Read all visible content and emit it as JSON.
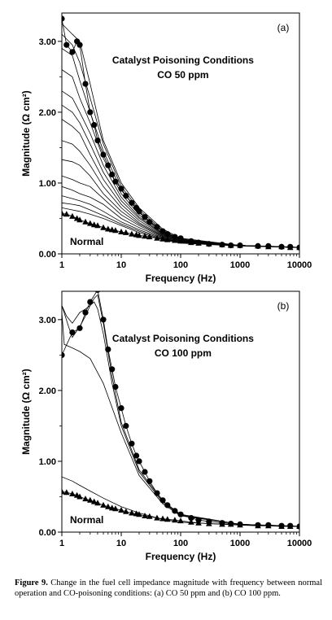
{
  "caption": {
    "label": "Figure 9.",
    "text": "Change in the fuel cell impedance magnitude with frequency between normal operation and CO-poisoning conditions: (a) CO 50 ppm and (b) CO 100 ppm."
  },
  "chart_data": [
    {
      "type": "line",
      "panel_label": "(a)",
      "annotation_lines": [
        "Catalyst Poisoning Conditions",
        "CO 50 ppm"
      ],
      "normal_label": "Normal",
      "xlabel": "Frequency (Hz)",
      "ylabel": "Magnitude (Ω cm²)",
      "x_scale": "log",
      "xlim": [
        1,
        10000
      ],
      "ylim": [
        0,
        3.4
      ],
      "x_ticks": [
        1,
        10,
        100,
        1000,
        10000
      ],
      "x_tick_labels": [
        "1",
        "10",
        "100",
        "1000",
        "10000"
      ],
      "y_ticks": [
        0,
        1,
        2,
        3
      ],
      "y_tick_labels": [
        "0.00",
        "1.00",
        "2.00",
        "3.00"
      ],
      "series": [
        {
          "marker": "circle",
          "x": [
            1,
            1.2,
            1.5,
            1.8,
            2,
            2.5,
            3,
            3.5,
            4,
            5,
            6,
            7,
            8,
            10,
            12,
            15,
            18,
            20,
            25,
            30,
            40,
            50,
            60,
            80,
            100,
            150,
            200,
            300,
            500,
            700,
            1000,
            2000,
            3000,
            5000,
            7000,
            10000
          ],
          "y": [
            3.32,
            2.95,
            2.85,
            3.0,
            2.95,
            2.4,
            2.0,
            1.82,
            1.6,
            1.4,
            1.25,
            1.12,
            1.02,
            0.92,
            0.82,
            0.72,
            0.65,
            0.6,
            0.52,
            0.45,
            0.38,
            0.32,
            0.28,
            0.24,
            0.22,
            0.18,
            0.16,
            0.14,
            0.13,
            0.12,
            0.12,
            0.11,
            0.11,
            0.1,
            0.1,
            0.09
          ]
        },
        {
          "marker": "none",
          "x": [
            1,
            1.5,
            2,
            3,
            5,
            10,
            20,
            50,
            100,
            1000,
            10000
          ],
          "y": [
            3.25,
            3.1,
            3.0,
            2.4,
            1.6,
            1.0,
            0.65,
            0.35,
            0.22,
            0.12,
            0.09
          ]
        },
        {
          "marker": "none",
          "x": [
            1,
            1.5,
            2,
            3,
            5,
            10,
            20,
            50,
            100,
            1000,
            10000
          ],
          "y": [
            3.1,
            2.95,
            2.7,
            2.2,
            1.55,
            0.95,
            0.62,
            0.33,
            0.21,
            0.12,
            0.09
          ]
        },
        {
          "marker": "none",
          "x": [
            1,
            1.5,
            2,
            3,
            5,
            10,
            20,
            50,
            100,
            1000,
            10000
          ],
          "y": [
            2.9,
            2.8,
            2.45,
            2.0,
            1.45,
            0.9,
            0.58,
            0.32,
            0.2,
            0.12,
            0.09
          ]
        },
        {
          "marker": "none",
          "x": [
            1,
            1.5,
            2,
            3,
            5,
            10,
            20,
            50,
            100,
            1000,
            10000
          ],
          "y": [
            2.6,
            2.5,
            2.2,
            1.85,
            1.35,
            0.85,
            0.55,
            0.3,
            0.2,
            0.12,
            0.09
          ]
        },
        {
          "marker": "none",
          "x": [
            1,
            1.5,
            2,
            3,
            5,
            10,
            20,
            50,
            100,
            1000,
            10000
          ],
          "y": [
            2.3,
            2.2,
            2.0,
            1.7,
            1.25,
            0.8,
            0.52,
            0.29,
            0.19,
            0.12,
            0.09
          ]
        },
        {
          "marker": "none",
          "x": [
            1,
            1.5,
            2,
            3,
            5,
            10,
            20,
            50,
            100,
            1000,
            10000
          ],
          "y": [
            2.1,
            2.0,
            1.85,
            1.55,
            1.15,
            0.75,
            0.5,
            0.28,
            0.19,
            0.12,
            0.09
          ]
        },
        {
          "marker": "none",
          "x": [
            1,
            1.5,
            2,
            3,
            5,
            10,
            20,
            50,
            100,
            1000,
            10000
          ],
          "y": [
            1.9,
            1.8,
            1.7,
            1.4,
            1.05,
            0.7,
            0.47,
            0.27,
            0.18,
            0.12,
            0.09
          ]
        },
        {
          "marker": "none",
          "x": [
            1,
            1.5,
            2,
            3,
            5,
            10,
            20,
            50,
            100,
            1000,
            10000
          ],
          "y": [
            1.6,
            1.55,
            1.45,
            1.25,
            0.95,
            0.65,
            0.44,
            0.26,
            0.18,
            0.12,
            0.09
          ]
        },
        {
          "marker": "none",
          "x": [
            1,
            1.5,
            2,
            3,
            5,
            10,
            20,
            50,
            100,
            1000,
            10000
          ],
          "y": [
            1.33,
            1.3,
            1.25,
            1.1,
            0.85,
            0.6,
            0.42,
            0.25,
            0.17,
            0.12,
            0.09
          ]
        },
        {
          "marker": "none",
          "x": [
            1,
            1.5,
            2,
            3,
            5,
            10,
            20,
            50,
            100,
            1000,
            10000
          ],
          "y": [
            1.1,
            1.05,
            1.0,
            0.95,
            0.78,
            0.55,
            0.4,
            0.24,
            0.17,
            0.12,
            0.09
          ]
        },
        {
          "marker": "none",
          "x": [
            1,
            1.5,
            2,
            3,
            5,
            10,
            20,
            50,
            100,
            1000,
            10000
          ],
          "y": [
            0.95,
            0.9,
            0.85,
            0.8,
            0.7,
            0.5,
            0.37,
            0.23,
            0.16,
            0.12,
            0.09
          ]
        },
        {
          "marker": "none",
          "x": [
            1,
            1.5,
            2,
            3,
            5,
            10,
            20,
            50,
            100,
            1000,
            10000
          ],
          "y": [
            0.82,
            0.78,
            0.75,
            0.7,
            0.6,
            0.45,
            0.34,
            0.22,
            0.16,
            0.12,
            0.09
          ]
        },
        {
          "marker": "none",
          "x": [
            1,
            1.5,
            2,
            3,
            5,
            10,
            20,
            50,
            100,
            1000,
            10000
          ],
          "y": [
            0.72,
            0.7,
            0.68,
            0.62,
            0.54,
            0.42,
            0.32,
            0.21,
            0.16,
            0.12,
            0.09
          ]
        },
        {
          "marker": "none",
          "x": [
            1,
            1.5,
            2,
            3,
            5,
            10,
            20,
            50,
            100,
            1000,
            10000
          ],
          "y": [
            0.65,
            0.62,
            0.6,
            0.56,
            0.5,
            0.4,
            0.3,
            0.2,
            0.15,
            0.11,
            0.09
          ]
        },
        {
          "marker": "triangle",
          "x": [
            1,
            1.2,
            1.5,
            1.8,
            2,
            2.5,
            3,
            3.5,
            4,
            5,
            6,
            7,
            8,
            10,
            12,
            15,
            18,
            20,
            25,
            30,
            40,
            50,
            60,
            80,
            100,
            150,
            200,
            300,
            500,
            700,
            1000,
            2000,
            3000,
            5000,
            7000,
            10000
          ],
          "y": [
            0.57,
            0.56,
            0.53,
            0.5,
            0.48,
            0.45,
            0.43,
            0.41,
            0.4,
            0.37,
            0.35,
            0.34,
            0.33,
            0.31,
            0.3,
            0.28,
            0.27,
            0.26,
            0.25,
            0.24,
            0.22,
            0.21,
            0.2,
            0.19,
            0.18,
            0.16,
            0.15,
            0.14,
            0.13,
            0.12,
            0.12,
            0.11,
            0.1,
            0.1,
            0.09,
            0.09
          ]
        }
      ]
    },
    {
      "type": "line",
      "panel_label": "(b)",
      "annotation_lines": [
        "Catalyst Poisoning Conditions",
        "CO 100 ppm"
      ],
      "normal_label": "Normal",
      "xlabel": "Frequency (Hz)",
      "ylabel": "Magnitude (Ω cm²)",
      "x_scale": "log",
      "xlim": [
        1,
        10000
      ],
      "ylim": [
        0,
        3.4
      ],
      "x_ticks": [
        1,
        10,
        100,
        1000,
        10000
      ],
      "x_tick_labels": [
        "1",
        "10",
        "100",
        "1000",
        "10000"
      ],
      "y_ticks": [
        0,
        1,
        2,
        3
      ],
      "y_tick_labels": [
        "0.00",
        "1.00",
        "2.00",
        "3.00"
      ],
      "series": [
        {
          "marker": "circle",
          "x": [
            1,
            1.5,
            2,
            2.5,
            3,
            4,
            5,
            6,
            7,
            8,
            10,
            12,
            15,
            18,
            20,
            25,
            30,
            40,
            50,
            60,
            80,
            100,
            150,
            200,
            300,
            500,
            700,
            1000,
            2000,
            3000,
            5000,
            7000,
            10000
          ],
          "y": [
            2.5,
            2.82,
            2.88,
            3.1,
            3.25,
            3.42,
            3.0,
            2.58,
            2.3,
            2.05,
            1.75,
            1.5,
            1.25,
            1.08,
            1.0,
            0.85,
            0.72,
            0.55,
            0.45,
            0.38,
            0.3,
            0.25,
            0.2,
            0.17,
            0.15,
            0.13,
            0.12,
            0.11,
            0.1,
            0.1,
            0.09,
            0.09,
            0.08
          ]
        },
        {
          "marker": "none",
          "x": [
            1,
            1.3,
            1.5,
            2,
            2.5,
            3,
            3.5,
            4,
            5,
            7,
            10,
            20,
            50,
            100,
            1000,
            10000
          ],
          "y": [
            3.2,
            2.9,
            2.75,
            2.9,
            3.05,
            3.2,
            3.25,
            3.15,
            2.8,
            2.1,
            1.5,
            0.85,
            0.42,
            0.24,
            0.11,
            0.08
          ]
        },
        {
          "marker": "none",
          "x": [
            1,
            1.2,
            1.5,
            2,
            2.5,
            3,
            3.5,
            4,
            5,
            7,
            10,
            20,
            50,
            100,
            1000,
            10000
          ],
          "y": [
            3.2,
            3.05,
            2.95,
            3.1,
            3.15,
            3.2,
            3.3,
            3.35,
            2.95,
            2.2,
            1.55,
            0.88,
            0.44,
            0.25,
            0.11,
            0.08
          ]
        },
        {
          "marker": "none",
          "x": [
            1,
            1.1,
            1.5,
            2,
            3,
            5,
            10,
            20,
            50,
            100,
            1000,
            10000
          ],
          "y": [
            3.1,
            2.65,
            2.6,
            2.55,
            2.45,
            2.1,
            1.4,
            0.8,
            0.4,
            0.23,
            0.11,
            0.08
          ]
        },
        {
          "marker": "none",
          "x": [
            1,
            1.5,
            2,
            3,
            5,
            10,
            20,
            50,
            100,
            1000,
            10000
          ],
          "y": [
            0.78,
            0.72,
            0.66,
            0.58,
            0.48,
            0.36,
            0.27,
            0.18,
            0.14,
            0.1,
            0.08
          ]
        },
        {
          "marker": "triangle",
          "x": [
            1,
            1.2,
            1.5,
            1.8,
            2,
            2.5,
            3,
            3.5,
            4,
            5,
            6,
            7,
            8,
            10,
            12,
            15,
            18,
            20,
            25,
            30,
            40,
            50,
            60,
            80,
            100,
            150,
            200,
            300,
            500,
            700,
            1000,
            2000,
            3000,
            5000,
            7000,
            10000
          ],
          "y": [
            0.57,
            0.56,
            0.54,
            0.52,
            0.5,
            0.47,
            0.45,
            0.43,
            0.41,
            0.38,
            0.36,
            0.34,
            0.33,
            0.31,
            0.29,
            0.27,
            0.26,
            0.25,
            0.23,
            0.22,
            0.2,
            0.19,
            0.18,
            0.17,
            0.16,
            0.14,
            0.13,
            0.12,
            0.11,
            0.11,
            0.1,
            0.09,
            0.09,
            0.08,
            0.08,
            0.08
          ]
        }
      ]
    }
  ]
}
